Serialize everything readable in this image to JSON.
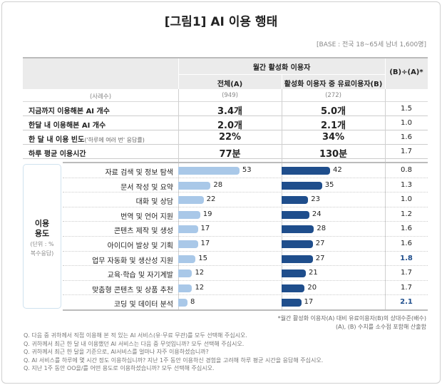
{
  "title": "[그림1] AI 이용 행태",
  "base": "[BASE : 전국 18~65세 남녀 1,600명]",
  "header": {
    "group": "월간 활성화 이용자",
    "col_a": "전체(A)",
    "col_b": "활성화 이용자 중 유료이용자(B)",
    "col_ratio": "(B)÷(A)*"
  },
  "counts": {
    "label": "(사례수)",
    "a": "(949)",
    "b": "(272)"
  },
  "rows": [
    {
      "label": "지금까지 이용해본 AI 개수",
      "note": "",
      "a": "3.4개",
      "b": "5.0개",
      "ratio": "1.5"
    },
    {
      "label": "한달 내 이용해본 AI 개수",
      "note": "",
      "a": "2.0개",
      "b": "2.1개",
      "ratio": "1.0"
    },
    {
      "label": "한 달 내 이용 빈도",
      "note": "('하루에 여러 번' 응답률)",
      "a": "22%",
      "b": "34%",
      "ratio": "1.6"
    },
    {
      "label": "하루 평균 이용시간",
      "note": "",
      "a": "77분",
      "b": "130분",
      "ratio": "1.7"
    }
  ],
  "usage_box": {
    "title1": "이용",
    "title2": "용도",
    "sub1": "(단위 : %",
    "sub2": "복수응답)"
  },
  "chart_data": {
    "type": "bar",
    "orientation": "horizontal",
    "categories": [
      "자료 검색 및 정보 탐색",
      "문서 작성 및 요약",
      "대화 및 상담",
      "번역 및 언어 지원",
      "콘텐츠 제작 및 생성",
      "아이디어 발상 및 기획",
      "업무 자동화 및 생산성 지원",
      "교육·학습 및 자기계발",
      "맞춤형 콘텐츠 및 상품 추천",
      "코딩 및 데이터 분석"
    ],
    "series": [
      {
        "name": "전체(A)",
        "values": [
          53,
          28,
          22,
          19,
          17,
          17,
          15,
          12,
          12,
          8
        ],
        "color": "#a9c8e8"
      },
      {
        "name": "활성화 이용자 중 유료이용자(B)",
        "values": [
          42,
          35,
          23,
          24,
          28,
          27,
          27,
          21,
          20,
          17
        ],
        "color": "#1f4e8c"
      }
    ],
    "ratios": [
      "0.8",
      "1.3",
      "1.0",
      "1.2",
      "1.6",
      "1.6",
      "1.8",
      "1.7",
      "1.7",
      "2.1"
    ],
    "highlighted_ratios": [
      6,
      9
    ],
    "highlight_color": "#1f4e8c",
    "unit": "%"
  },
  "footnotes": [
    "*월간 활성화 이용자(A) 대비 유료이용자(B)의 상대수준(배수)",
    "(A), (B) 수치를 소수점 포함해 산출함"
  ],
  "questions": [
    "Q. 다음 중 귀하께서 직접 이용해 본 적 있는 AI 서비스(유·무료 무관)를 모두 선택해 주십시오.",
    "Q. 귀하께서 최근 한 달 내 이용했던 AI 서비스는 다음 중 무엇입니까? 모두 선택해 주십시오.",
    "Q. 귀하께서 최근 한 달을 기준으로, AI서비스를 얼마나 자주 이용하셨습니까?",
    "Q. AI 서비스를 하루에 몇 시간 정도 이용하십니까? 지난 1주 동안 이용하신 경험을 고려해 하루 평균 시간을 응답해 주십시오.",
    "Q. 지난 1주 동안 OO을/를 어떤 용도로 이용하셨습니까? 모두 선택해 주십시오."
  ]
}
